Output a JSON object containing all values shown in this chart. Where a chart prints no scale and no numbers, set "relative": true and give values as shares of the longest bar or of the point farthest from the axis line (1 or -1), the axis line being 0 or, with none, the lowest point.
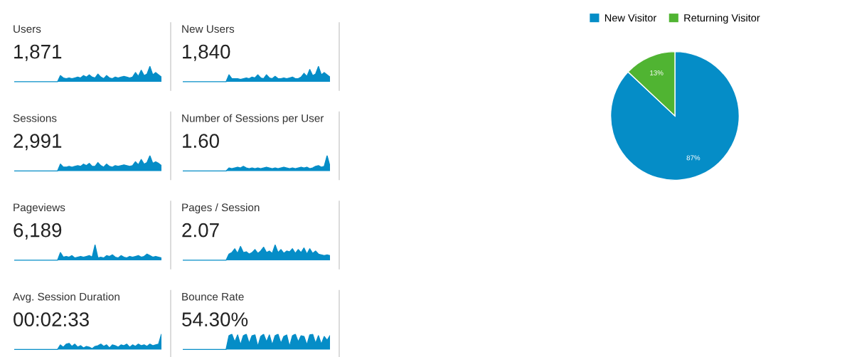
{
  "chart_data": [
    {
      "type": "area",
      "title": "Users",
      "subtitle": "1,871",
      "relative": true,
      "color": "#058dc7",
      "categories": [
        null,
        null,
        null,
        null,
        null,
        null,
        null,
        null,
        null,
        null,
        null,
        null,
        null,
        null,
        null,
        null,
        null,
        null,
        null,
        null,
        null,
        null,
        null,
        null,
        null,
        null,
        null,
        null,
        null,
        null,
        null,
        null,
        null,
        null,
        null,
        null,
        null,
        null,
        null,
        null,
        null,
        null,
        null,
        null,
        null,
        null,
        null,
        null,
        null,
        null,
        null,
        null
      ],
      "values": [
        0,
        0,
        0,
        0,
        0,
        0,
        0,
        0,
        0,
        0,
        0,
        0,
        0,
        0,
        0,
        0,
        0.4,
        0.25,
        0.2,
        0.25,
        0.2,
        0.25,
        0.3,
        0.25,
        0.4,
        0.3,
        0.45,
        0.3,
        0.25,
        0.5,
        0.3,
        0.2,
        0.4,
        0.25,
        0.2,
        0.3,
        0.25,
        0.3,
        0.35,
        0.3,
        0.25,
        0.3,
        0.6,
        0.35,
        0.75,
        0.4,
        0.5,
        1.0,
        0.45,
        0.6,
        0.45,
        0.3
      ]
    },
    {
      "type": "area",
      "title": "New Users",
      "subtitle": "1,840",
      "relative": true,
      "color": "#058dc7",
      "categories": [
        null,
        null,
        null,
        null,
        null,
        null,
        null,
        null,
        null,
        null,
        null,
        null,
        null,
        null,
        null,
        null,
        null,
        null,
        null,
        null,
        null,
        null,
        null,
        null,
        null,
        null,
        null,
        null,
        null,
        null,
        null,
        null,
        null,
        null,
        null,
        null,
        null,
        null,
        null,
        null,
        null,
        null,
        null,
        null,
        null,
        null,
        null,
        null,
        null,
        null,
        null,
        null
      ],
      "values": [
        0,
        0,
        0,
        0,
        0,
        0,
        0,
        0,
        0,
        0,
        0,
        0,
        0,
        0,
        0,
        0,
        0.45,
        0.2,
        0.2,
        0.2,
        0.15,
        0.2,
        0.25,
        0.2,
        0.3,
        0.25,
        0.45,
        0.25,
        0.2,
        0.45,
        0.25,
        0.2,
        0.35,
        0.2,
        0.2,
        0.25,
        0.2,
        0.25,
        0.3,
        0.2,
        0.2,
        0.3,
        0.55,
        0.35,
        0.8,
        0.4,
        0.5,
        1.0,
        0.45,
        0.6,
        0.45,
        0.3
      ]
    },
    {
      "type": "area",
      "title": "Sessions",
      "subtitle": "2,991",
      "relative": true,
      "color": "#058dc7",
      "categories": [
        null,
        null,
        null,
        null,
        null,
        null,
        null,
        null,
        null,
        null,
        null,
        null,
        null,
        null,
        null,
        null,
        null,
        null,
        null,
        null,
        null,
        null,
        null,
        null,
        null,
        null,
        null,
        null,
        null,
        null,
        null,
        null,
        null,
        null,
        null,
        null,
        null,
        null,
        null,
        null,
        null,
        null,
        null,
        null,
        null,
        null,
        null,
        null,
        null,
        null,
        null,
        null
      ],
      "values": [
        0,
        0,
        0,
        0,
        0,
        0,
        0,
        0,
        0,
        0,
        0,
        0,
        0,
        0,
        0,
        0,
        0.45,
        0.25,
        0.25,
        0.3,
        0.25,
        0.3,
        0.35,
        0.3,
        0.45,
        0.35,
        0.5,
        0.3,
        0.3,
        0.55,
        0.35,
        0.25,
        0.45,
        0.3,
        0.25,
        0.35,
        0.3,
        0.35,
        0.4,
        0.35,
        0.3,
        0.35,
        0.6,
        0.4,
        0.75,
        0.45,
        0.55,
        1.0,
        0.5,
        0.6,
        0.5,
        0.35
      ]
    },
    {
      "type": "area",
      "title": "Number of Sessions per User",
      "subtitle": "1.60",
      "relative": true,
      "color": "#058dc7",
      "categories": [
        null,
        null,
        null,
        null,
        null,
        null,
        null,
        null,
        null,
        null,
        null,
        null,
        null,
        null,
        null,
        null,
        null,
        null,
        null,
        null,
        null,
        null,
        null,
        null,
        null,
        null,
        null,
        null,
        null,
        null,
        null,
        null,
        null,
        null,
        null,
        null,
        null,
        null,
        null,
        null,
        null,
        null,
        null,
        null,
        null,
        null,
        null,
        null,
        null,
        null,
        null,
        null
      ],
      "values": [
        0,
        0,
        0,
        0,
        0,
        0,
        0,
        0,
        0,
        0,
        0,
        0,
        0,
        0,
        0,
        0,
        0.2,
        0.15,
        0.2,
        0.25,
        0.2,
        0.3,
        0.2,
        0.15,
        0.2,
        0.15,
        0.2,
        0.15,
        0.2,
        0.25,
        0.2,
        0.15,
        0.2,
        0.15,
        0.2,
        0.25,
        0.2,
        0.15,
        0.2,
        0.15,
        0.2,
        0.25,
        0.2,
        0.25,
        0.15,
        0.2,
        0.3,
        0.35,
        0.25,
        0.3,
        1.0,
        0.3
      ]
    },
    {
      "type": "area",
      "title": "Pageviews",
      "subtitle": "6,189",
      "relative": true,
      "color": "#058dc7",
      "categories": [
        null,
        null,
        null,
        null,
        null,
        null,
        null,
        null,
        null,
        null,
        null,
        null,
        null,
        null,
        null,
        null,
        null,
        null,
        null,
        null,
        null,
        null,
        null,
        null,
        null,
        null,
        null,
        null,
        null,
        null,
        null,
        null,
        null,
        null,
        null,
        null,
        null,
        null,
        null,
        null,
        null,
        null,
        null,
        null,
        null,
        null,
        null,
        null,
        null,
        null,
        null,
        null
      ],
      "values": [
        0,
        0,
        0,
        0,
        0,
        0,
        0,
        0,
        0,
        0,
        0,
        0,
        0,
        0,
        0,
        0,
        0.5,
        0.2,
        0.25,
        0.2,
        0.3,
        0.15,
        0.2,
        0.25,
        0.2,
        0.25,
        0.3,
        0.2,
        1.0,
        0.15,
        0.2,
        0.15,
        0.3,
        0.25,
        0.35,
        0.2,
        0.15,
        0.3,
        0.2,
        0.15,
        0.25,
        0.2,
        0.25,
        0.3,
        0.2,
        0.25,
        0.4,
        0.3,
        0.2,
        0.25,
        0.2,
        0.15
      ]
    },
    {
      "type": "area",
      "title": "Pages / Session",
      "subtitle": "2.07",
      "relative": true,
      "color": "#058dc7",
      "categories": [
        null,
        null,
        null,
        null,
        null,
        null,
        null,
        null,
        null,
        null,
        null,
        null,
        null,
        null,
        null,
        null,
        null,
        null,
        null,
        null,
        null,
        null,
        null,
        null,
        null,
        null,
        null,
        null,
        null,
        null,
        null,
        null,
        null,
        null,
        null,
        null,
        null,
        null,
        null,
        null,
        null,
        null,
        null,
        null,
        null,
        null,
        null,
        null,
        null,
        null,
        null,
        null
      ],
      "values": [
        0,
        0,
        0,
        0,
        0,
        0,
        0,
        0,
        0,
        0,
        0,
        0,
        0,
        0,
        0,
        0,
        0.4,
        0.5,
        0.75,
        0.45,
        0.9,
        0.5,
        0.55,
        0.4,
        0.5,
        0.7,
        0.45,
        0.6,
        0.85,
        0.5,
        0.6,
        0.45,
        1.0,
        0.5,
        0.7,
        0.45,
        0.6,
        0.55,
        0.75,
        0.45,
        0.7,
        0.5,
        0.8,
        0.4,
        0.75,
        0.45,
        0.6,
        0.4,
        0.35,
        0.3,
        0.35,
        0.3
      ]
    },
    {
      "type": "area",
      "title": "Avg. Session Duration",
      "subtitle": "00:02:33",
      "relative": true,
      "color": "#058dc7",
      "categories": [
        null,
        null,
        null,
        null,
        null,
        null,
        null,
        null,
        null,
        null,
        null,
        null,
        null,
        null,
        null,
        null,
        null,
        null,
        null,
        null,
        null,
        null,
        null,
        null,
        null,
        null,
        null,
        null,
        null,
        null,
        null,
        null,
        null,
        null,
        null,
        null,
        null,
        null,
        null,
        null,
        null,
        null,
        null,
        null,
        null,
        null,
        null,
        null,
        null,
        null,
        null,
        null
      ],
      "values": [
        0,
        0,
        0,
        0,
        0,
        0,
        0,
        0,
        0,
        0,
        0,
        0,
        0,
        0,
        0,
        0,
        0.3,
        0.15,
        0.35,
        0.4,
        0.2,
        0.35,
        0.15,
        0.25,
        0.1,
        0.2,
        0.15,
        0.05,
        0.2,
        0.25,
        0.35,
        0.2,
        0.3,
        0.1,
        0.3,
        0.25,
        0.15,
        0.3,
        0.25,
        0.35,
        0.15,
        0.3,
        0.2,
        0.35,
        0.25,
        0.3,
        0.2,
        0.35,
        0.25,
        0.3,
        0.35,
        1.0
      ]
    },
    {
      "type": "area",
      "title": "Bounce Rate",
      "subtitle": "54.30%",
      "relative": true,
      "color": "#058dc7",
      "categories": [
        null,
        null,
        null,
        null,
        null,
        null,
        null,
        null,
        null,
        null,
        null,
        null,
        null,
        null,
        null,
        null,
        null,
        null,
        null,
        null,
        null,
        null,
        null,
        null,
        null,
        null,
        null,
        null,
        null,
        null,
        null,
        null,
        null,
        null,
        null,
        null,
        null,
        null,
        null,
        null,
        null,
        null,
        null,
        null,
        null,
        null,
        null,
        null,
        null,
        null,
        null,
        null
      ],
      "values": [
        0,
        0,
        0,
        0,
        0,
        0,
        0,
        0,
        0,
        0,
        0,
        0,
        0,
        0,
        0,
        0,
        0.9,
        1.0,
        0.5,
        0.95,
        0.3,
        0.9,
        1.0,
        0.4,
        0.9,
        0.95,
        0.2,
        0.85,
        1.0,
        0.5,
        0.95,
        0.3,
        0.9,
        1.0,
        0.4,
        0.85,
        0.95,
        0.2,
        0.9,
        1.0,
        0.5,
        0.9,
        0.85,
        0.3,
        0.95,
        1.0,
        0.4,
        0.9,
        0.35,
        0.85,
        0.6,
        0.9
      ]
    },
    {
      "type": "pie",
      "categories": [
        "New Visitor",
        "Returning Visitor"
      ],
      "values": [
        87,
        13
      ],
      "colors": [
        "#058dc7",
        "#50b432"
      ],
      "value_labels": [
        "87%",
        "13%"
      ],
      "legend": "top"
    }
  ]
}
